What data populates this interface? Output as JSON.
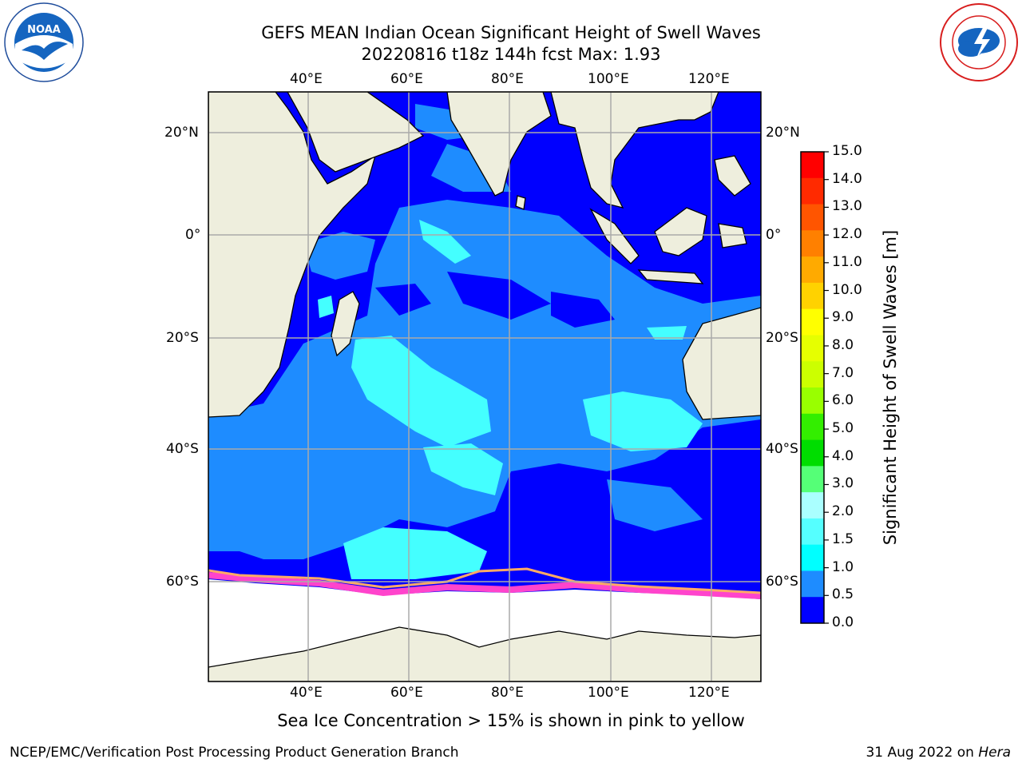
{
  "header": {
    "title_line1": "GEFS MEAN Indian Ocean Significant Height of Swell Waves",
    "title_line2": "20220816 t18z 144h fcst   Max: 1.93"
  },
  "logos": {
    "left": {
      "text": "NOAA",
      "ring": "NATIONAL OCEANIC AND ATMOSPHERIC ADMINISTRATION · U.S. DEPARTMENT OF COMMERCE"
    },
    "right": {
      "ring": "NATIONAL WEATHER SERVICE"
    }
  },
  "map": {
    "lon_ticks_top": [
      "40°E",
      "60°E",
      "80°E",
      "100°E",
      "120°E"
    ],
    "lon_ticks_bottom": [
      "40°E",
      "60°E",
      "80°E",
      "100°E",
      "120°E"
    ],
    "lat_ticks_left": [
      "20°N",
      "0°",
      "20°S",
      "40°S",
      "60°S"
    ],
    "lat_ticks_right": [
      "20°N",
      "0°",
      "20°S",
      "40°S",
      "60°S"
    ],
    "colors": {
      "ocean_low": "#0000ff",
      "ocean_mid": "#1e8cff",
      "ocean_high": "#00ffff",
      "land": "#eeeedd",
      "ice": "#ffffff",
      "ice_edge": "#ff44cc"
    }
  },
  "colorbar": {
    "label": "Significant Height of Swell Waves [m]",
    "ticks": [
      "15.0",
      "14.0",
      "13.0",
      "12.0",
      "11.0",
      "10.0",
      "9.0",
      "8.0",
      "7.0",
      "6.0",
      "5.0",
      "4.0",
      "3.0",
      "2.0",
      "1.5",
      "1.0",
      "0.5",
      "0.0"
    ],
    "colors_top_to_bottom": [
      "#ff0000",
      "#ff2a00",
      "#ff5500",
      "#ff8000",
      "#ffaa00",
      "#ffd200",
      "#ffff00",
      "#e6ff00",
      "#ccff00",
      "#99ff00",
      "#33ee00",
      "#00dd00",
      "#55ff77",
      "#aaffff",
      "#55ffff",
      "#00ffff",
      "#1e8cff",
      "#0000ff"
    ]
  },
  "note": "Sea Ice Concentration > 15% is shown in pink to yellow",
  "footer": {
    "left": "NCEP/EMC/Verification Post Processing Product Generation Branch",
    "date": "31 Aug 2022 on ",
    "machine": "Hera"
  }
}
